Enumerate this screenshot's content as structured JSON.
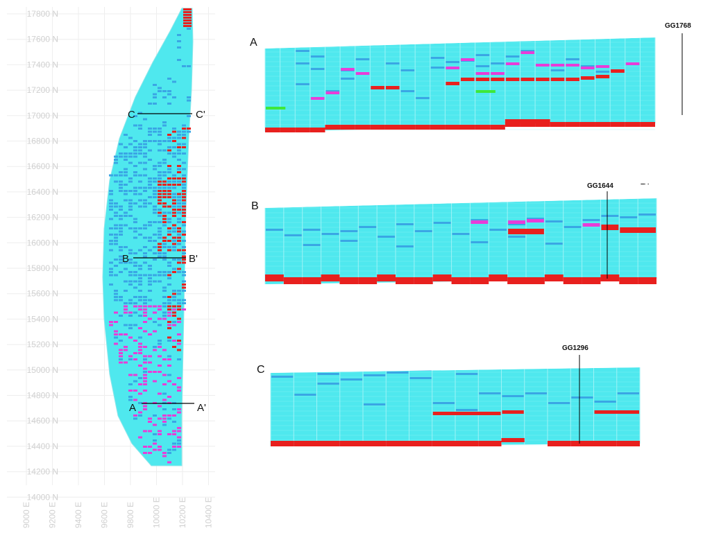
{
  "plan": {
    "northing_labels": [
      "17800 N",
      "17600 N",
      "17400 N",
      "17200 N",
      "17000 N",
      "16800 N",
      "16600 N",
      "16400 N",
      "16200 N",
      "16000 N",
      "15800 N",
      "15600 N",
      "15400 N",
      "15200 N",
      "15000 N",
      "14800 N",
      "14600 N",
      "14400 N",
      "14200 N",
      "14000 N"
    ],
    "easting_labels": [
      "9000 E",
      "9200 E",
      "9400 E",
      "9600 E",
      "9800 E",
      "10000 E",
      "10200 E",
      "10400 E"
    ],
    "section_lines": [
      {
        "start": "C",
        "end": "C'"
      },
      {
        "start": "B",
        "end": "B'"
      },
      {
        "start": "A",
        "end": "A'"
      }
    ]
  },
  "sections": [
    {
      "start": "A",
      "end": "A'",
      "drillhole": "GG1768"
    },
    {
      "start": "B",
      "end": "B'",
      "drillhole": "GG1644"
    },
    {
      "start": "C",
      "end": "C'",
      "drillhole": "GG1296"
    }
  ],
  "colors": {
    "background_block": "#4fe8ee",
    "block_line": "#9ef3f6",
    "blue_block": "#3aa6e4",
    "red_block": "#e8201e",
    "magenta_block": "#e83cd8",
    "green_block": "#3ee83a",
    "grid_text": "#d0d0d0"
  }
}
